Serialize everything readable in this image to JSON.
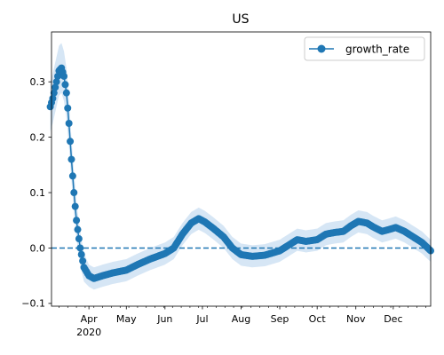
{
  "chart_data": {
    "type": "line",
    "title": "US",
    "xlabel": "",
    "ylabel": "",
    "xlim": [
      "2020-03-02",
      "2020-12-31"
    ],
    "ylim": [
      -0.105,
      0.39
    ],
    "y_ticks": [
      -0.1,
      0.0,
      0.1,
      0.2,
      0.3
    ],
    "y_tick_labels": [
      "−0.1",
      "0.0",
      "0.1",
      "0.2",
      "0.3"
    ],
    "x_ticks": [
      {
        "date": "2020-04-01",
        "label": "Apr",
        "sublabel": "2020"
      },
      {
        "date": "2020-05-01",
        "label": "May",
        "sublabel": ""
      },
      {
        "date": "2020-06-01",
        "label": "Jun",
        "sublabel": ""
      },
      {
        "date": "2020-07-01",
        "label": "Jul",
        "sublabel": ""
      },
      {
        "date": "2020-08-01",
        "label": "Aug",
        "sublabel": ""
      },
      {
        "date": "2020-09-01",
        "label": "Sep",
        "sublabel": ""
      },
      {
        "date": "2020-10-01",
        "label": "Oct",
        "sublabel": ""
      },
      {
        "date": "2020-11-01",
        "label": "Nov",
        "sublabel": ""
      },
      {
        "date": "2020-12-01",
        "label": "Dec",
        "sublabel": ""
      }
    ],
    "reference_line": {
      "y": 0.0,
      "style": "dashed"
    },
    "grid": false,
    "legend": {
      "position": "top-right",
      "entries": [
        "growth_rate"
      ]
    },
    "series": [
      {
        "name": "growth_rate",
        "color": "#1f77b4",
        "band_color": "#d6e6f5",
        "marker": "circle",
        "band_halfwidth_keypoints": [
          {
            "date": "2020-03-01",
            "value": 0.045
          },
          {
            "date": "2020-03-14",
            "value": 0.045
          },
          {
            "date": "2020-04-01",
            "value": 0.02
          },
          {
            "date": "2020-12-31",
            "value": 0.02
          }
        ],
        "keypoints": [
          {
            "date": "2020-03-01",
            "value": 0.255
          },
          {
            "date": "2020-03-03",
            "value": 0.27
          },
          {
            "date": "2020-03-05",
            "value": 0.29
          },
          {
            "date": "2020-03-08",
            "value": 0.32
          },
          {
            "date": "2020-03-10",
            "value": 0.325
          },
          {
            "date": "2020-03-12",
            "value": 0.31
          },
          {
            "date": "2020-03-14",
            "value": 0.28
          },
          {
            "date": "2020-03-16",
            "value": 0.225
          },
          {
            "date": "2020-03-18",
            "value": 0.16
          },
          {
            "date": "2020-03-20",
            "value": 0.1
          },
          {
            "date": "2020-03-22",
            "value": 0.05
          },
          {
            "date": "2020-03-25",
            "value": 0.0
          },
          {
            "date": "2020-03-28",
            "value": -0.035
          },
          {
            "date": "2020-04-01",
            "value": -0.05
          },
          {
            "date": "2020-04-05",
            "value": -0.055
          },
          {
            "date": "2020-04-12",
            "value": -0.05
          },
          {
            "date": "2020-04-20",
            "value": -0.045
          },
          {
            "date": "2020-05-01",
            "value": -0.04
          },
          {
            "date": "2020-05-10",
            "value": -0.03
          },
          {
            "date": "2020-05-20",
            "value": -0.02
          },
          {
            "date": "2020-06-01",
            "value": -0.01
          },
          {
            "date": "2020-06-08",
            "value": 0.0
          },
          {
            "date": "2020-06-15",
            "value": 0.025
          },
          {
            "date": "2020-06-22",
            "value": 0.045
          },
          {
            "date": "2020-06-28",
            "value": 0.053
          },
          {
            "date": "2020-07-03",
            "value": 0.047
          },
          {
            "date": "2020-07-10",
            "value": 0.035
          },
          {
            "date": "2020-07-18",
            "value": 0.02
          },
          {
            "date": "2020-07-25",
            "value": 0.0
          },
          {
            "date": "2020-08-01",
            "value": -0.012
          },
          {
            "date": "2020-08-10",
            "value": -0.015
          },
          {
            "date": "2020-08-20",
            "value": -0.013
          },
          {
            "date": "2020-09-01",
            "value": -0.005
          },
          {
            "date": "2020-09-08",
            "value": 0.005
          },
          {
            "date": "2020-09-15",
            "value": 0.015
          },
          {
            "date": "2020-09-22",
            "value": 0.012
          },
          {
            "date": "2020-10-01",
            "value": 0.015
          },
          {
            "date": "2020-10-08",
            "value": 0.025
          },
          {
            "date": "2020-10-15",
            "value": 0.028
          },
          {
            "date": "2020-10-22",
            "value": 0.03
          },
          {
            "date": "2020-10-28",
            "value": 0.04
          },
          {
            "date": "2020-11-03",
            "value": 0.048
          },
          {
            "date": "2020-11-10",
            "value": 0.045
          },
          {
            "date": "2020-11-15",
            "value": 0.038
          },
          {
            "date": "2020-11-22",
            "value": 0.03
          },
          {
            "date": "2020-11-27",
            "value": 0.033
          },
          {
            "date": "2020-12-03",
            "value": 0.037
          },
          {
            "date": "2020-12-10",
            "value": 0.03
          },
          {
            "date": "2020-12-17",
            "value": 0.02
          },
          {
            "date": "2020-12-24",
            "value": 0.01
          },
          {
            "date": "2020-12-31",
            "value": -0.005
          }
        ]
      }
    ]
  }
}
